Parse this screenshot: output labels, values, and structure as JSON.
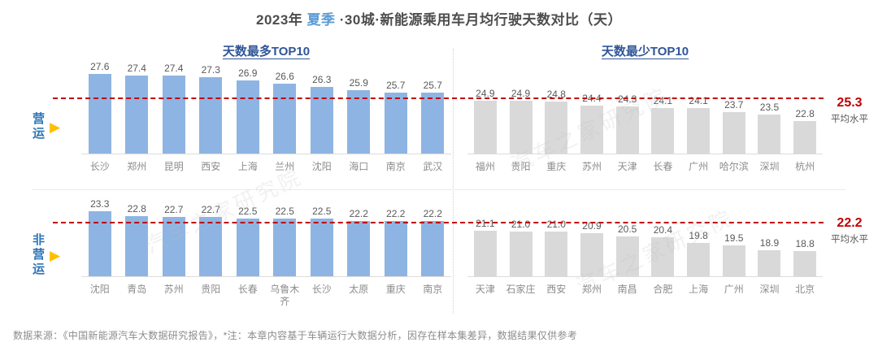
{
  "title": {
    "prefix": "2023年 ",
    "highlight": "夏季",
    "suffix": " ·30城·新能源乘用车月均行驶天数对比（天）"
  },
  "column_headers": {
    "most": "天数最多TOP10",
    "least": "天数最少TOP10"
  },
  "row_labels": [
    {
      "text": "营运"
    },
    {
      "text": "非营运"
    }
  ],
  "average_note": "平均水平",
  "watermark_text": "汽车之家研究院",
  "footer": "数据来源：《中国新能源汽车大数据研究报告》，*注：本章内容基于车辆运行大数据分析，因存在样本集差异，数据结果仅供参考",
  "colors": {
    "bar_blue": "#8EB4E3",
    "bar_gray": "#D9D9D9",
    "average_red": "#C00000",
    "header_navy": "#2F5597",
    "highlight_blue": "#5B9BD5",
    "row_label_blue": "#2E75B6",
    "triangle_yellow": "#FFC000"
  },
  "chart_data": [
    {
      "type": "bar",
      "group": "营运",
      "average": 25.3,
      "ylim": [
        19.5,
        28.5
      ],
      "panels": [
        {
          "title": "天数最多TOP10",
          "bar_color": "#8EB4E3",
          "categories": [
            "长沙",
            "郑州",
            "昆明",
            "西安",
            "上海",
            "兰州",
            "沈阳",
            "海口",
            "南京",
            "武汉"
          ],
          "values": [
            27.6,
            27.4,
            27.4,
            27.3,
            26.9,
            26.6,
            26.3,
            25.9,
            25.7,
            25.7
          ]
        },
        {
          "title": "天数最少TOP10",
          "bar_color": "#D9D9D9",
          "categories": [
            "福州",
            "贵阳",
            "重庆",
            "苏州",
            "天津",
            "长春",
            "广州",
            "哈尔滨",
            "深圳",
            "杭州"
          ],
          "values": [
            24.9,
            24.9,
            24.8,
            24.4,
            24.3,
            24.1,
            24.1,
            23.7,
            23.5,
            22.8
          ]
        }
      ]
    },
    {
      "type": "bar",
      "group": "非营运",
      "average": 22.2,
      "ylim": [
        16.0,
        26.0
      ],
      "panels": [
        {
          "title": "天数最多TOP10",
          "bar_color": "#8EB4E3",
          "categories": [
            "沈阳",
            "青岛",
            "苏州",
            "贵阳",
            "长春",
            "乌鲁木齐",
            "长沙",
            "太原",
            "重庆",
            "南京"
          ],
          "values": [
            23.3,
            22.8,
            22.7,
            22.7,
            22.5,
            22.5,
            22.5,
            22.2,
            22.2,
            22.2
          ]
        },
        {
          "title": "天数最少TOP10",
          "bar_color": "#D9D9D9",
          "categories": [
            "天津",
            "石家庄",
            "西安",
            "郑州",
            "南昌",
            "合肥",
            "上海",
            "广州",
            "深圳",
            "北京"
          ],
          "values": [
            21.1,
            21.0,
            21.0,
            20.9,
            20.5,
            20.4,
            19.8,
            19.5,
            18.9,
            18.8
          ]
        }
      ]
    }
  ]
}
